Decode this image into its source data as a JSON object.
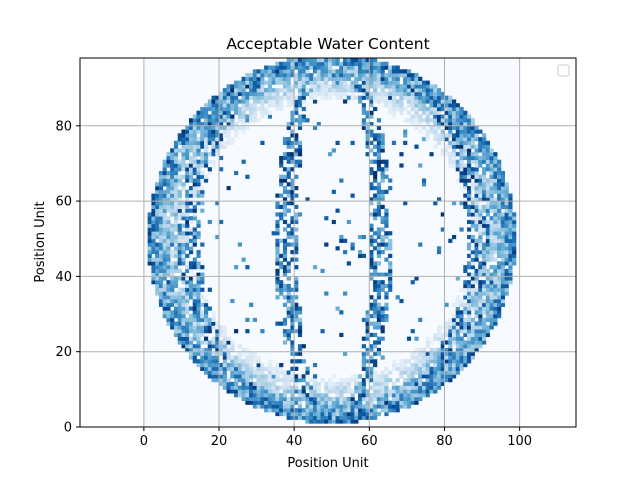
{
  "chart_data": {
    "type": "heatmap",
    "title": "Acceptable Water Content",
    "xlabel": "Position Unit",
    "ylabel": "Position Unit",
    "xlim": [
      -17,
      115
    ],
    "ylim": [
      0,
      98
    ],
    "xticks": [
      0,
      20,
      40,
      60,
      80,
      100
    ],
    "yticks": [
      0,
      20,
      40,
      60,
      80
    ],
    "grid": true,
    "legend": {
      "position": "upper right",
      "entries": []
    },
    "colormap": "Blues",
    "data_extent": {
      "x": [
        0,
        100
      ],
      "y": [
        0,
        98
      ]
    },
    "cell_size": 1,
    "globe": {
      "center_x": 50,
      "center_y": 50,
      "radius": 49
    },
    "colors": {
      "low": "#f7fbff",
      "high": "#08306b",
      "grid": "#b0b0b0",
      "axes": "#000000"
    }
  }
}
